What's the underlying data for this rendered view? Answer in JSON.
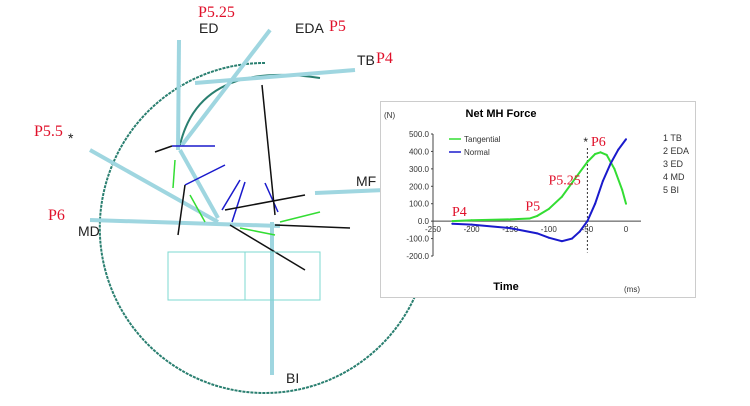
{
  "diagram": {
    "labels": {
      "ed": "ED",
      "eda": "EDA",
      "tb": "TB",
      "mf": "MF",
      "md": "MD",
      "bi": "BI"
    },
    "phase_labels": {
      "ed": "P5.25",
      "eda": "P5",
      "tb": "P4",
      "p55": "P5.5",
      "md": "P6"
    },
    "asterisk": "*"
  },
  "chart_data": {
    "type": "line",
    "title": "Net MH Force",
    "ylabel": "(N)",
    "xlabel": "Time",
    "xunit": "(ms)",
    "xlim": [
      -250,
      0
    ],
    "ylim": [
      -200,
      500
    ],
    "xticks": [
      "-250",
      "-200",
      "-150",
      "-100",
      "-50",
      "0"
    ],
    "yticks": [
      "500.0",
      "400.0",
      "300.0",
      "200.0",
      "100.0",
      "0.0",
      "-100.0",
      "-200.0"
    ],
    "legend_position": "top-left",
    "series": [
      {
        "name": "Tangential",
        "color": "#33dd33",
        "x": [
          -225,
          -200,
          -150,
          -125,
          -115,
          -100,
          -83,
          -65,
          -50,
          -40,
          -33,
          -25,
          -15,
          -5,
          0
        ],
        "y": [
          0,
          5,
          10,
          15,
          30,
          70,
          140,
          250,
          340,
          385,
          395,
          380,
          300,
          180,
          100
        ]
      },
      {
        "name": "Normal",
        "color": "#1a1acc",
        "x": [
          -225,
          -200,
          -150,
          -115,
          -100,
          -83,
          -70,
          -60,
          -50,
          -40,
          -30,
          -20,
          -10,
          0
        ],
        "y": [
          -15,
          -20,
          -40,
          -70,
          -95,
          -115,
          -100,
          -60,
          0,
          100,
          230,
          330,
          410,
          470
        ]
      }
    ],
    "dashed_marker": {
      "x": -50,
      "label": "*"
    },
    "annotations": [
      {
        "text": "P4",
        "x": -215,
        "y": 30
      },
      {
        "text": "P5",
        "x": -120,
        "y": 60
      },
      {
        "text": "P5.25",
        "x": -90,
        "y": 210
      },
      {
        "text": "P6",
        "x": -35,
        "y": 430
      }
    ],
    "muscle_legend": [
      "1 TB",
      "2 EDA",
      "3 ED",
      "4 MD",
      "5 BI"
    ]
  }
}
